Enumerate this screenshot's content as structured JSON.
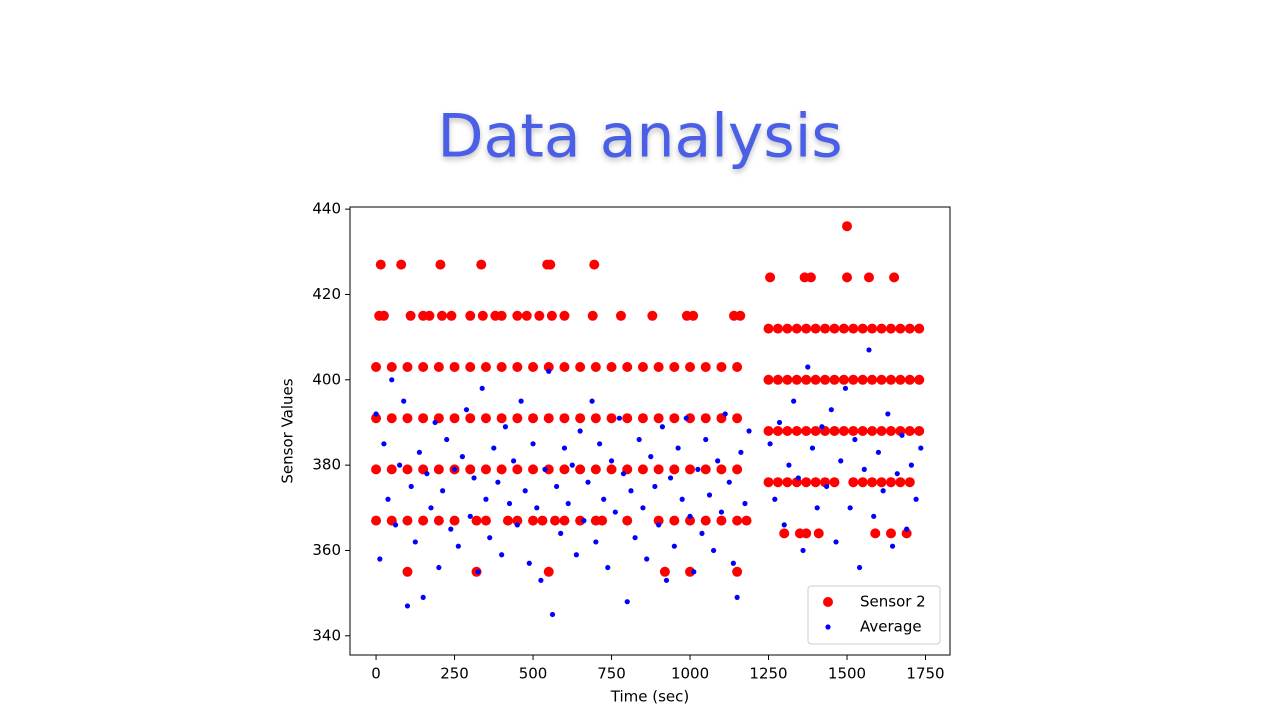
{
  "title": "Data analysis",
  "chart_data": {
    "type": "scatter",
    "xlabel": "Time (sec)",
    "ylabel": "Sensor Values",
    "xlim": [
      -83,
      1828
    ],
    "ylim": [
      335.5,
      440.5
    ],
    "xticks": [
      0,
      250,
      500,
      750,
      1000,
      1250,
      1500,
      1750
    ],
    "yticks": [
      340,
      360,
      380,
      400,
      420,
      440
    ],
    "legend": "lower right",
    "series": [
      {
        "name": "Sensor 2",
        "color": "#ff0000",
        "x": [
          15,
          80,
          205,
          335,
          545,
          555,
          695,
          10,
          25,
          110,
          150,
          170,
          210,
          240,
          300,
          340,
          380,
          400,
          450,
          480,
          520,
          560,
          600,
          690,
          780,
          880,
          990,
          1010,
          1140,
          1160,
          0,
          50,
          100,
          150,
          200,
          250,
          300,
          350,
          400,
          450,
          500,
          550,
          600,
          650,
          700,
          750,
          800,
          850,
          900,
          950,
          1000,
          1050,
          1100,
          1150,
          0,
          50,
          100,
          150,
          200,
          250,
          300,
          350,
          400,
          450,
          500,
          550,
          600,
          650,
          700,
          750,
          800,
          850,
          900,
          950,
          1000,
          1050,
          1100,
          1150,
          0,
          50,
          100,
          150,
          200,
          250,
          300,
          350,
          400,
          450,
          500,
          550,
          600,
          650,
          700,
          750,
          800,
          850,
          900,
          950,
          1000,
          1050,
          1100,
          1150,
          0,
          50,
          100,
          150,
          200,
          250,
          320,
          350,
          420,
          450,
          500,
          530,
          570,
          600,
          650,
          700,
          720,
          800,
          900,
          950,
          1000,
          1050,
          1100,
          1150,
          1180,
          100,
          320,
          550,
          920,
          1000,
          1150,
          1500,
          1255,
          1365,
          1385,
          1500,
          1570,
          1650,
          1250,
          1280,
          1310,
          1340,
          1370,
          1400,
          1430,
          1460,
          1490,
          1520,
          1550,
          1580,
          1610,
          1640,
          1670,
          1700,
          1730,
          1250,
          1280,
          1310,
          1340,
          1370,
          1400,
          1430,
          1460,
          1490,
          1520,
          1550,
          1580,
          1610,
          1640,
          1670,
          1700,
          1730,
          1250,
          1280,
          1310,
          1340,
          1370,
          1400,
          1430,
          1460,
          1490,
          1520,
          1550,
          1580,
          1610,
          1640,
          1670,
          1700,
          1730,
          1250,
          1280,
          1310,
          1340,
          1370,
          1400,
          1430,
          1460,
          1520,
          1550,
          1580,
          1610,
          1640,
          1670,
          1700,
          1300,
          1350,
          1370,
          1410,
          1590,
          1640,
          1690
        ],
        "values": [
          427,
          427,
          427,
          427,
          427,
          427,
          427,
          415,
          415,
          415,
          415,
          415,
          415,
          415,
          415,
          415,
          415,
          415,
          415,
          415,
          415,
          415,
          415,
          415,
          415,
          415,
          415,
          415,
          415,
          415,
          403,
          403,
          403,
          403,
          403,
          403,
          403,
          403,
          403,
          403,
          403,
          403,
          403,
          403,
          403,
          403,
          403,
          403,
          403,
          403,
          403,
          403,
          403,
          403,
          391,
          391,
          391,
          391,
          391,
          391,
          391,
          391,
          391,
          391,
          391,
          391,
          391,
          391,
          391,
          391,
          391,
          391,
          391,
          391,
          391,
          391,
          391,
          391,
          379,
          379,
          379,
          379,
          379,
          379,
          379,
          379,
          379,
          379,
          379,
          379,
          379,
          379,
          379,
          379,
          379,
          379,
          379,
          379,
          379,
          379,
          379,
          379,
          367,
          367,
          367,
          367,
          367,
          367,
          367,
          367,
          367,
          367,
          367,
          367,
          367,
          367,
          367,
          367,
          367,
          367,
          367,
          367,
          367,
          367,
          367,
          367,
          367,
          355,
          355,
          355,
          355,
          355,
          355,
          436,
          424,
          424,
          424,
          424,
          424,
          424,
          412,
          412,
          412,
          412,
          412,
          412,
          412,
          412,
          412,
          412,
          412,
          412,
          412,
          412,
          412,
          412,
          412,
          400,
          400,
          400,
          400,
          400,
          400,
          400,
          400,
          400,
          400,
          400,
          400,
          400,
          400,
          400,
          400,
          400,
          388,
          388,
          388,
          388,
          388,
          388,
          388,
          388,
          388,
          388,
          388,
          388,
          388,
          388,
          388,
          388,
          388,
          376,
          376,
          376,
          376,
          376,
          376,
          376,
          376,
          376,
          376,
          376,
          376,
          376,
          376,
          376,
          364,
          364,
          364,
          364,
          364,
          364,
          364
        ]
      },
      {
        "name": "Average",
        "color": "#0000ff",
        "x": [
          0,
          12,
          25,
          38,
          50,
          62,
          75,
          88,
          100,
          112,
          125,
          138,
          150,
          162,
          175,
          188,
          200,
          212,
          225,
          238,
          250,
          262,
          275,
          288,
          300,
          312,
          325,
          338,
          350,
          362,
          375,
          388,
          400,
          412,
          425,
          438,
          450,
          462,
          475,
          488,
          500,
          512,
          525,
          538,
          550,
          562,
          575,
          588,
          600,
          612,
          625,
          638,
          650,
          662,
          675,
          688,
          700,
          712,
          725,
          738,
          750,
          762,
          775,
          788,
          800,
          812,
          825,
          838,
          850,
          862,
          875,
          888,
          900,
          912,
          925,
          938,
          950,
          962,
          975,
          988,
          1000,
          1012,
          1025,
          1038,
          1050,
          1062,
          1075,
          1088,
          1100,
          1112,
          1125,
          1138,
          1150,
          1162,
          1175,
          1188,
          1255,
          1270,
          1285,
          1300,
          1315,
          1330,
          1345,
          1360,
          1375,
          1390,
          1405,
          1420,
          1435,
          1450,
          1465,
          1480,
          1495,
          1510,
          1525,
          1540,
          1555,
          1570,
          1585,
          1600,
          1615,
          1630,
          1645,
          1660,
          1675,
          1690,
          1705,
          1720,
          1735
        ],
        "values": [
          392,
          358,
          385,
          372,
          400,
          366,
          380,
          395,
          347,
          375,
          362,
          383,
          349,
          378,
          370,
          390,
          356,
          374,
          386,
          365,
          379,
          361,
          382,
          393,
          368,
          377,
          355,
          398,
          372,
          363,
          384,
          376,
          359,
          389,
          371,
          381,
          366,
          395,
          374,
          357,
          385,
          370,
          353,
          379,
          402,
          345,
          375,
          364,
          384,
          371,
          380,
          359,
          388,
          367,
          376,
          395,
          362,
          385,
          372,
          356,
          381,
          369,
          391,
          378,
          348,
          374,
          363,
          386,
          370,
          358,
          382,
          375,
          366,
          389,
          353,
          377,
          361,
          384,
          372,
          391,
          368,
          355,
          379,
          364,
          386,
          373,
          360,
          381,
          369,
          392,
          376,
          357,
          349,
          383,
          371,
          388,
          385,
          372,
          390,
          366,
          380,
          395,
          377,
          360,
          403,
          384,
          370,
          389,
          375,
          393,
          362,
          381,
          398,
          370,
          386,
          356,
          379,
          407,
          368,
          383,
          374,
          392,
          361,
          378,
          387,
          365,
          380,
          372,
          384
        ]
      }
    ]
  }
}
